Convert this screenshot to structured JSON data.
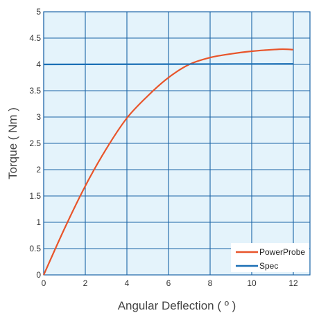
{
  "chart_data": {
    "type": "line",
    "title": "",
    "xlabel": "Angular Deflection ( º )",
    "ylabel": "Torque ( Nm )",
    "xlim": [
      0,
      12.8
    ],
    "ylim": [
      0,
      5
    ],
    "xticks": [
      0,
      2,
      4,
      6,
      8,
      10,
      12
    ],
    "yticks": [
      0,
      0.5,
      1,
      1.5,
      2,
      2.5,
      3,
      3.5,
      4,
      4.5,
      5
    ],
    "xtick_labels": [
      "0",
      "2",
      "4",
      "6",
      "8",
      "10",
      "12"
    ],
    "ytick_labels": [
      "0",
      "0.5",
      "1",
      "1.5",
      "2",
      "2.5",
      "3",
      "3.5",
      "4",
      "4.5",
      "5"
    ],
    "grid": true,
    "legend_position": "bottom-right",
    "plot_background": "#e4f3fb",
    "grid_color": "#1a63a6",
    "series": [
      {
        "name": "PowerProbe",
        "color": "#e8542a",
        "x": [
          0,
          1,
          2,
          3,
          4,
          5,
          6,
          7,
          8,
          9,
          10,
          11,
          11.5,
          12
        ],
        "y": [
          0,
          0.88,
          1.69,
          2.39,
          2.98,
          3.4,
          3.75,
          4.0,
          4.13,
          4.2,
          4.25,
          4.28,
          4.29,
          4.28
        ]
      },
      {
        "name": "Spec",
        "color": "#1b6fb5",
        "x": [
          0,
          12
        ],
        "y": [
          4.0,
          4.01
        ]
      }
    ]
  }
}
